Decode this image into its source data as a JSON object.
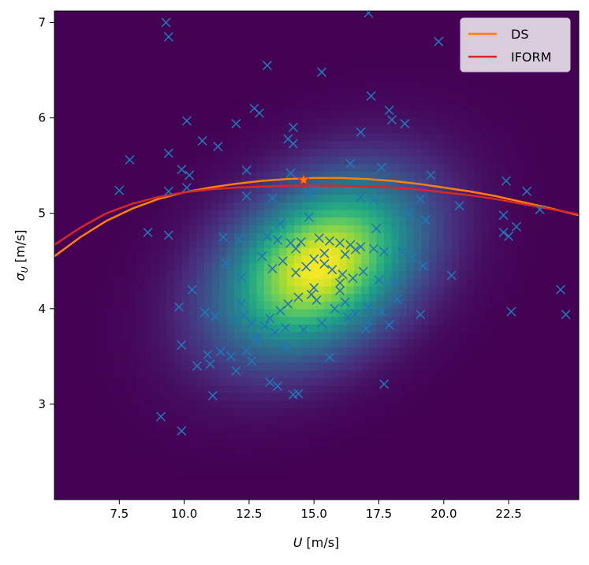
{
  "chart_data": {
    "type": "scatter",
    "title": "",
    "xlabel_var": "U",
    "xlabel_unit": " [m/s]",
    "ylabel_var": "σ",
    "ylabel_sub": "U",
    "ylabel_unit": " [m/s]",
    "xlim": [
      5.0,
      25.2
    ],
    "ylim": [
      2.0,
      7.12
    ],
    "xticks": [
      7.5,
      10.0,
      12.5,
      15.0,
      17.5,
      20.0,
      22.5
    ],
    "xtick_labels": [
      "7.5",
      "10.0",
      "12.5",
      "15.0",
      "17.5",
      "20.0",
      "22.5"
    ],
    "yticks": [
      3,
      4,
      5,
      6,
      7
    ],
    "ytick_labels": [
      "3",
      "4",
      "5",
      "6",
      "7"
    ],
    "grid": false,
    "legend_position": "top-right",
    "background": {
      "type": "heatmap",
      "colormap": "viridis",
      "peak_x": 15.2,
      "peak_y": 4.45,
      "spread_x": 2.6,
      "spread_y": 0.62,
      "correlation": 0.35
    },
    "series": [
      {
        "name": "DS",
        "kind": "line",
        "color": "#ff7f0e",
        "x": [
          5.0,
          6.0,
          7.0,
          8.0,
          9.0,
          10.0,
          11.0,
          12.0,
          13.0,
          14.0,
          15.0,
          16.0,
          17.0,
          18.0,
          19.0,
          20.0,
          21.0,
          22.0,
          23.0,
          24.0,
          25.2
        ],
        "y": [
          4.55,
          4.75,
          4.92,
          5.05,
          5.15,
          5.22,
          5.27,
          5.31,
          5.34,
          5.36,
          5.37,
          5.37,
          5.36,
          5.34,
          5.31,
          5.27,
          5.23,
          5.18,
          5.12,
          5.06,
          4.98
        ]
      },
      {
        "name": "IFORM",
        "kind": "line",
        "color": "#d62728",
        "x": [
          5.0,
          6.0,
          7.0,
          8.0,
          9.0,
          10.0,
          11.0,
          12.0,
          13.0,
          14.0,
          15.0,
          16.0,
          17.0,
          18.0,
          19.0,
          20.0,
          21.0,
          22.0,
          23.0,
          24.0,
          25.2
        ],
        "y": [
          4.67,
          4.85,
          5.0,
          5.1,
          5.17,
          5.22,
          5.25,
          5.27,
          5.28,
          5.29,
          5.29,
          5.29,
          5.28,
          5.27,
          5.25,
          5.22,
          5.19,
          5.15,
          5.1,
          5.05,
          4.99
        ]
      },
      {
        "name": "",
        "kind": "marker-star",
        "color": "#ff7f0e",
        "x": [
          14.6
        ],
        "y": [
          5.35
        ]
      },
      {
        "name": "",
        "kind": "scatter",
        "marker": "x",
        "color": "#1f77b4",
        "x": [
          9.3,
          9.4,
          17.1,
          19.8,
          13.2,
          15.3,
          17.2,
          12.7,
          12.9,
          17.9,
          18.0,
          10.1,
          12.0,
          14.2,
          18.5,
          16.8,
          10.7,
          14.0,
          14.2,
          11.3,
          9.4,
          7.9,
          9.9,
          10.2,
          12.4,
          14.1,
          16.4,
          17.6,
          19.5,
          22.4,
          7.5,
          10.1,
          9.4,
          12.4,
          13.4,
          14.8,
          15.0,
          16.8,
          17.3,
          19.1,
          20.6,
          22.3,
          23.2,
          8.6,
          9.4,
          11.5,
          12.1,
          13.2,
          13.6,
          14.1,
          14.5,
          15.2,
          15.6,
          16.0,
          16.4,
          16.8,
          17.3,
          17.7,
          18.4,
          19.3,
          22.3,
          22.8,
          23.7,
          10.3,
          11.6,
          12.2,
          13.0,
          13.4,
          13.8,
          14.3,
          14.7,
          15.0,
          15.4,
          15.7,
          16.1,
          16.5,
          16.9,
          17.5,
          18.1,
          19.2,
          20.3,
          22.5,
          9.8,
          10.8,
          11.2,
          11.9,
          12.3,
          12.6,
          13.3,
          13.7,
          14.0,
          14.4,
          14.9,
          15.1,
          15.8,
          16.2,
          16.6,
          17.1,
          17.6,
          18.2,
          19.1,
          22.6,
          24.5,
          24.7,
          9.9,
          10.9,
          11.4,
          11.8,
          12.4,
          12.8,
          13.1,
          13.5,
          13.9,
          14.6,
          15.3,
          16.3,
          17.0,
          17.9,
          11.1,
          12.0,
          13.3,
          13.6,
          14.2,
          14.4,
          15.6,
          17.7,
          9.1,
          9.9,
          15.4,
          16.6,
          12.6,
          13.9,
          14.8,
          16.0,
          17.4,
          18.8,
          11.0,
          12.2,
          13.7,
          15.0,
          16.2,
          17.1,
          18.6,
          10.5,
          12.8,
          14.3,
          16.0
        ],
        "y": [
          7.0,
          6.85,
          7.1,
          6.8,
          6.55,
          6.48,
          6.23,
          6.1,
          6.05,
          6.08,
          5.98,
          5.97,
          5.94,
          5.9,
          5.94,
          5.85,
          5.76,
          5.78,
          5.73,
          5.7,
          5.63,
          5.56,
          5.46,
          5.4,
          5.45,
          5.42,
          5.52,
          5.48,
          5.4,
          5.34,
          5.24,
          5.27,
          5.23,
          5.18,
          5.16,
          5.2,
          5.25,
          5.17,
          5.14,
          5.15,
          5.08,
          4.98,
          5.23,
          4.8,
          4.77,
          4.75,
          4.73,
          4.76,
          4.72,
          4.69,
          4.7,
          4.74,
          4.71,
          4.69,
          4.67,
          4.65,
          4.63,
          4.6,
          4.6,
          4.93,
          4.8,
          4.86,
          5.04,
          4.2,
          4.48,
          4.33,
          4.55,
          4.42,
          4.5,
          4.38,
          4.44,
          4.52,
          4.47,
          4.41,
          4.36,
          4.32,
          4.39,
          4.3,
          4.28,
          4.45,
          4.35,
          4.76,
          4.02,
          3.96,
          3.92,
          3.88,
          3.93,
          3.85,
          3.9,
          3.98,
          4.05,
          4.12,
          4.15,
          4.09,
          4.0,
          4.07,
          3.95,
          4.02,
          3.97,
          4.1,
          3.94,
          3.97,
          4.2,
          3.94,
          3.62,
          3.52,
          3.55,
          3.5,
          3.56,
          3.7,
          3.82,
          3.75,
          3.8,
          3.78,
          3.85,
          3.91,
          3.79,
          3.83,
          3.09,
          3.35,
          3.23,
          3.19,
          3.1,
          3.11,
          3.49,
          3.21,
          2.87,
          2.72,
          4.58,
          4.62,
          3.45,
          3.6,
          4.96,
          4.27,
          4.84,
          4.54,
          3.42,
          4.05,
          4.89,
          4.22,
          4.57,
          3.87,
          5.0,
          3.4,
          3.68,
          4.63,
          4.19
        ]
      }
    ]
  }
}
